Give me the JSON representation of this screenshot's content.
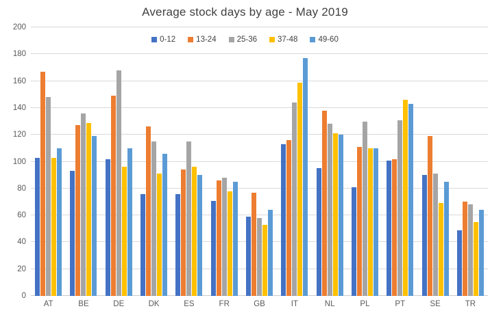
{
  "chart_data": {
    "type": "bar",
    "title": "Average stock days by age - May 2019",
    "xlabel": "",
    "ylabel": "",
    "categories": [
      "AT",
      "BE",
      "DE",
      "DK",
      "ES",
      "FR",
      "GB",
      "IT",
      "NL",
      "PL",
      "PT",
      "SE",
      "TR"
    ],
    "series": [
      {
        "name": "0-12",
        "color": "#4472C4",
        "values": [
          103,
          93,
          102,
          76,
          76,
          71,
          59,
          113,
          95,
          81,
          101,
          90,
          49
        ]
      },
      {
        "name": "13-24",
        "color": "#ED7D31",
        "values": [
          167,
          127,
          149,
          126,
          94,
          86,
          77,
          116,
          138,
          111,
          102,
          119,
          70
        ]
      },
      {
        "name": "25-36",
        "color": "#A5A5A5",
        "values": [
          148,
          136,
          168,
          115,
          115,
          88,
          58,
          144,
          128,
          130,
          131,
          91,
          68
        ]
      },
      {
        "name": "37-48",
        "color": "#FFC000",
        "values": [
          103,
          129,
          96,
          91,
          96,
          78,
          53,
          159,
          121,
          110,
          146,
          69,
          55
        ]
      },
      {
        "name": "49-60",
        "color": "#5B9BD5",
        "values": [
          110,
          119,
          110,
          106,
          90,
          85,
          64,
          177,
          120,
          110,
          143,
          85,
          64
        ]
      }
    ],
    "ylim": [
      0,
      200
    ],
    "yticks": [
      0,
      20,
      40,
      60,
      80,
      100,
      120,
      140,
      160,
      180,
      200
    ],
    "grid": true,
    "legend_position": "top-center"
  },
  "colors": {
    "title_text": "#404040",
    "axis_text": "#595959",
    "gridline": "#D9D9D9",
    "background": "#FFFFFF"
  }
}
